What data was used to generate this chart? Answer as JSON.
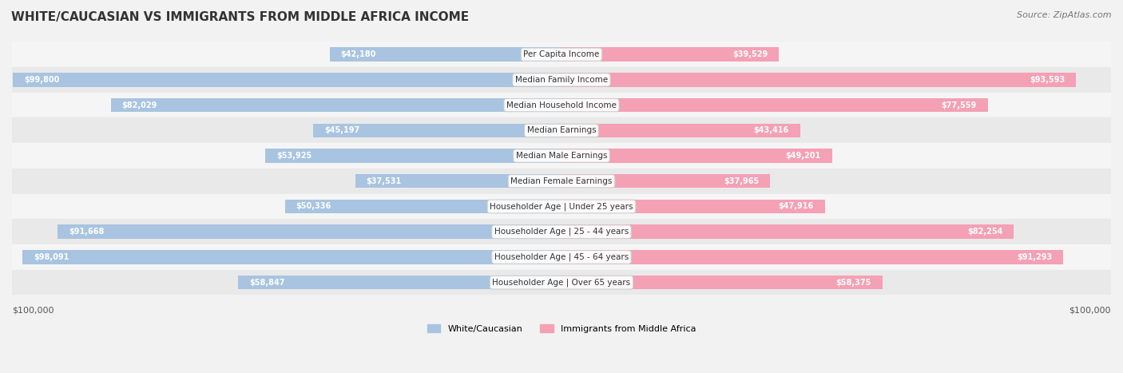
{
  "title": "WHITE/CAUCASIAN VS IMMIGRANTS FROM MIDDLE AFRICA INCOME",
  "source": "Source: ZipAtlas.com",
  "categories": [
    "Per Capita Income",
    "Median Family Income",
    "Median Household Income",
    "Median Earnings",
    "Median Male Earnings",
    "Median Female Earnings",
    "Householder Age | Under 25 years",
    "Householder Age | 25 - 44 years",
    "Householder Age | 45 - 64 years",
    "Householder Age | Over 65 years"
  ],
  "white_values": [
    42180,
    99800,
    82029,
    45197,
    53925,
    37531,
    50336,
    91668,
    98091,
    58847
  ],
  "immigrant_values": [
    39529,
    93593,
    77559,
    43416,
    49201,
    37965,
    47916,
    82254,
    91293,
    58375
  ],
  "white_labels": [
    "$42,180",
    "$99,800",
    "$82,029",
    "$45,197",
    "$53,925",
    "$37,531",
    "$50,336",
    "$91,668",
    "$98,091",
    "$58,847"
  ],
  "immigrant_labels": [
    "$39,529",
    "$93,593",
    "$77,559",
    "$43,416",
    "$49,201",
    "$37,965",
    "$47,916",
    "$82,254",
    "$91,293",
    "$58,375"
  ],
  "max_value": 100000,
  "white_color": "#a8c4e0",
  "white_dark_color": "#6699cc",
  "immigrant_color": "#f4a0b5",
  "immigrant_dark_color": "#e8688a",
  "bg_color": "#f0f0f0",
  "row_bg_light": "#f7f7f7",
  "row_bg_dark": "#e8e8e8",
  "legend_white": "White/Caucasian",
  "legend_immigrant": "Immigrants from Middle Africa",
  "xlabel_left": "$100,000",
  "xlabel_right": "$100,000"
}
